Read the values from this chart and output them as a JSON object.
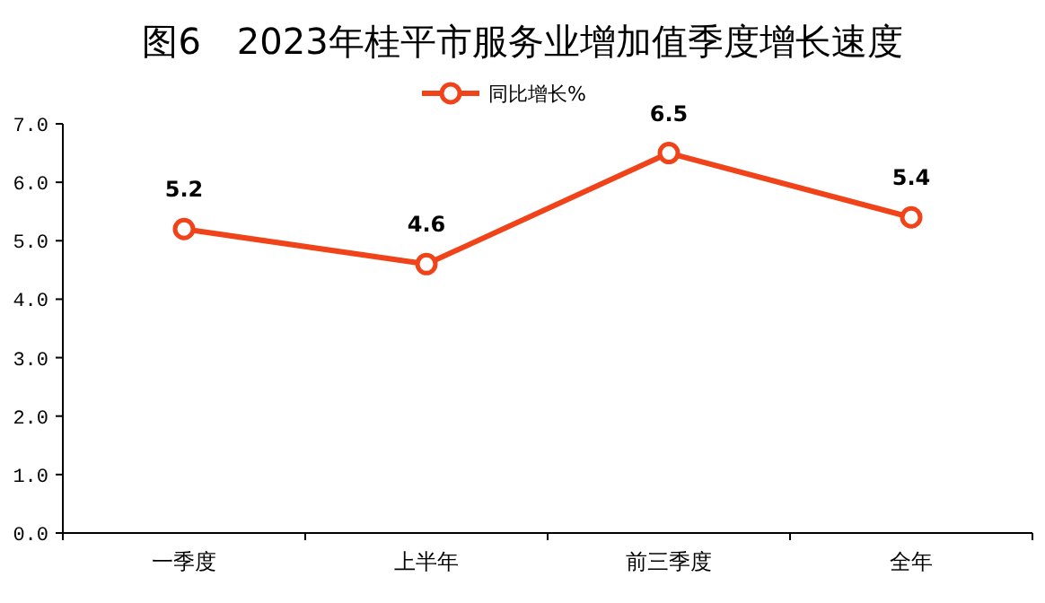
{
  "chart_data": {
    "type": "line",
    "title": "图6　2023年桂平市服务业增加值季度增长速度",
    "categories": [
      "一季度",
      "上半年",
      "前三季度",
      "全年"
    ],
    "series": [
      {
        "name": "同比增长%",
        "color": "#f0431a",
        "values": [
          5.2,
          4.6,
          6.5,
          5.4
        ]
      }
    ],
    "ylim": [
      0,
      7
    ],
    "yticks": [
      {
        "value": 0,
        "label": "0.0"
      },
      {
        "value": 1,
        "label": "1.0"
      },
      {
        "value": 2,
        "label": "2.0"
      },
      {
        "value": 3,
        "label": "3.0"
      },
      {
        "value": 4,
        "label": "4.0"
      },
      {
        "value": 5,
        "label": "5.0"
      },
      {
        "value": 6,
        "label": "6.0"
      },
      {
        "value": 7,
        "label": "7.0"
      }
    ],
    "data_labels": true,
    "legend": "top",
    "marker": "circle",
    "grid": false
  }
}
